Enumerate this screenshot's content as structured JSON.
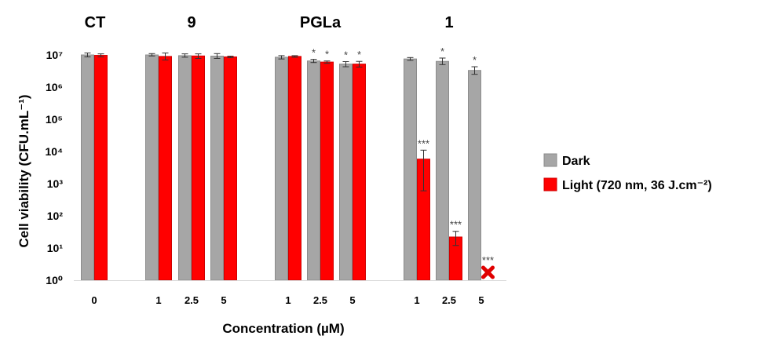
{
  "chart_data": {
    "type": "bar",
    "title": "",
    "xlabel": "Concentration (µM)",
    "ylabel": "Cell viability (CFU.mL⁻¹)",
    "yscale": "log",
    "ylim": [
      1,
      10000000
    ],
    "yticks": [
      {
        "value": 1,
        "label": "10⁰"
      },
      {
        "value": 10,
        "label": "10¹"
      },
      {
        "value": 100,
        "label": "10²"
      },
      {
        "value": 1000,
        "label": "10³"
      },
      {
        "value": 10000,
        "label": "10⁴"
      },
      {
        "value": 100000,
        "label": "10⁵"
      },
      {
        "value": 1000000,
        "label": "10⁶"
      },
      {
        "value": 10000000,
        "label": "10⁷"
      }
    ],
    "grid": false,
    "legend_position": "right",
    "groups": [
      {
        "label": "CT",
        "concentrations": [
          "0"
        ]
      },
      {
        "label": "9",
        "concentrations": [
          "1",
          "2.5",
          "5"
        ]
      },
      {
        "label": "PGLa",
        "concentrations": [
          "1",
          "2.5",
          "5"
        ]
      },
      {
        "label": "1",
        "concentrations": [
          "1",
          "2.5",
          "5"
        ]
      }
    ],
    "categories": [
      "CT 0",
      "9 1",
      "9 2.5",
      "9 5",
      "PGLa 1",
      "PGLa 2.5",
      "PGLa 5",
      "1 1",
      "1 2.5",
      "1 5"
    ],
    "series": [
      {
        "name": "Dark",
        "color": "#a6a6a6",
        "values": [
          10000000,
          10000000,
          9500000,
          9200000,
          8500000,
          6500000,
          5200000,
          7500000,
          6300000,
          3300000
        ],
        "err_low": [
          8700000,
          9300000,
          8500000,
          7800000,
          7500000,
          5800000,
          4300000,
          6800000,
          5000000,
          2500000
        ],
        "err_high": [
          11500000,
          11000000,
          10800000,
          11000000,
          9500000,
          7300000,
          6200000,
          8300000,
          8000000,
          4300000
        ],
        "significance": [
          "",
          "",
          "",
          "",
          "",
          "*",
          "*",
          "",
          "*",
          "*"
        ]
      },
      {
        "name": "Light (720 nm, 36 J.cm⁻²)",
        "color": "#ff0000",
        "values": [
          9700000,
          9000000,
          9300000,
          8700000,
          9000000,
          6000000,
          5200000,
          5800,
          22,
          null
        ],
        "err_low": [
          8700000,
          7000000,
          7800000,
          8200000,
          8500000,
          5500000,
          4200000,
          600,
          12,
          null
        ],
        "err_high": [
          10800000,
          11500000,
          10800000,
          9200000,
          9500000,
          6500000,
          6300000,
          11000,
          33,
          null
        ],
        "significance": [
          "",
          "",
          "",
          "",
          "",
          "*",
          "*",
          "***",
          "***",
          "***"
        ],
        "no_growth_marker": [
          false,
          false,
          false,
          false,
          false,
          false,
          false,
          false,
          false,
          true
        ]
      }
    ]
  }
}
